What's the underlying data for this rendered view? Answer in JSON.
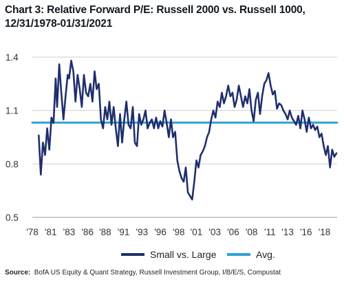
{
  "chart_data": {
    "type": "line",
    "title": "Chart 3: Relative Forward P/E: Russell 2000 vs. Russell 1000, 12/31/1978-01/31/2021",
    "xlabel": "",
    "ylabel": "",
    "xlim": [
      1978,
      2021.1
    ],
    "ylim": [
      0.5,
      1.4
    ],
    "y_ticks": [
      "0.5",
      "0.8",
      "1.1",
      "1.4"
    ],
    "y_tick_values": [
      0.5,
      0.8,
      1.1,
      1.4
    ],
    "x_ticks": [
      "'78",
      "'81",
      "'83",
      "'86",
      "'88",
      "'91",
      "'93",
      "'96",
      "'98",
      "'01",
      "'03",
      "'06",
      "'08",
      "'11",
      "'13",
      "'16",
      "'18"
    ],
    "x_tick_values": [
      1978,
      1980.6,
      1983.2,
      1985.8,
      1988.3,
      1990.9,
      1993.5,
      1996.1,
      1998.7,
      2001.2,
      2003.8,
      2006.4,
      2009,
      2011.6,
      2014.1,
      2016.7,
      2019.3
    ],
    "grid": "horizontal",
    "legend_position": "bottom",
    "series": [
      {
        "name": "Small vs. Large",
        "color": "#1f2f6e",
        "x": [
          1978.9,
          1979.2,
          1979.5,
          1979.8,
          1980.1,
          1980.4,
          1980.7,
          1981.0,
          1981.3,
          1981.5,
          1981.8,
          1982.1,
          1982.4,
          1982.7,
          1983.0,
          1983.2,
          1983.5,
          1983.8,
          1984.1,
          1984.4,
          1984.7,
          1985.0,
          1985.3,
          1985.6,
          1985.9,
          1986.2,
          1986.5,
          1986.8,
          1987.1,
          1987.4,
          1987.7,
          1988.0,
          1988.3,
          1988.6,
          1988.9,
          1989.2,
          1989.5,
          1989.8,
          1990.1,
          1990.4,
          1990.7,
          1991.0,
          1991.3,
          1991.6,
          1991.9,
          1992.2,
          1992.5,
          1992.8,
          1993.1,
          1993.4,
          1993.7,
          1994.0,
          1994.3,
          1994.6,
          1994.9,
          1995.2,
          1995.5,
          1995.8,
          1996.1,
          1996.4,
          1996.7,
          1997.0,
          1997.3,
          1997.6,
          1997.9,
          1998.2,
          1998.5,
          1998.8,
          1999.1,
          1999.4,
          1999.7,
          2000.0,
          2000.3,
          2000.6,
          2000.9,
          2001.2,
          2001.5,
          2001.8,
          2002.1,
          2002.4,
          2002.7,
          2003.0,
          2003.3,
          2003.6,
          2003.9,
          2004.2,
          2004.5,
          2004.8,
          2005.1,
          2005.4,
          2005.7,
          2006.0,
          2006.3,
          2006.6,
          2006.9,
          2007.2,
          2007.5,
          2007.8,
          2008.1,
          2008.4,
          2008.7,
          2009.0,
          2009.3,
          2009.6,
          2009.9,
          2010.2,
          2010.5,
          2010.8,
          2011.1,
          2011.4,
          2011.7,
          2012.0,
          2012.3,
          2012.6,
          2012.9,
          2013.2,
          2013.5,
          2013.8,
          2014.1,
          2014.4,
          2014.7,
          2015.0,
          2015.3,
          2015.6,
          2015.9,
          2016.2,
          2016.5,
          2016.8,
          2017.1,
          2017.4,
          2017.7,
          2018.0,
          2018.3,
          2018.6,
          2018.9,
          2019.2,
          2019.5,
          2019.8,
          2020.1,
          2020.4,
          2020.7,
          2021.0
        ],
        "y": [
          0.96,
          0.74,
          0.92,
          0.85,
          1.0,
          0.88,
          1.06,
          1.03,
          1.28,
          1.12,
          1.36,
          1.2,
          1.05,
          1.18,
          1.3,
          1.28,
          1.38,
          1.32,
          1.15,
          1.3,
          1.22,
          1.12,
          1.3,
          1.2,
          1.18,
          1.25,
          1.15,
          1.32,
          1.22,
          1.25,
          1.05,
          1.0,
          1.12,
          1.05,
          1.15,
          1.02,
          1.12,
          1.0,
          0.9,
          1.08,
          0.92,
          1.05,
          1.15,
          1.02,
          1.0,
          1.12,
          0.92,
          0.9,
          1.08,
          1.02,
          1.05,
          1.1,
          1.0,
          1.03,
          1.05,
          1.0,
          1.06,
          1.0,
          1.04,
          1.01,
          1.1,
          1.03,
          0.95,
          1.05,
          0.95,
          0.98,
          0.82,
          0.76,
          0.72,
          0.7,
          0.78,
          0.64,
          0.62,
          0.6,
          0.7,
          0.82,
          0.78,
          0.85,
          0.87,
          0.9,
          0.95,
          0.98,
          1.05,
          1.1,
          1.06,
          1.15,
          1.12,
          1.2,
          1.14,
          1.18,
          1.24,
          1.18,
          1.2,
          1.12,
          1.16,
          1.24,
          1.18,
          1.12,
          1.18,
          1.14,
          1.22,
          1.1,
          1.04,
          1.16,
          1.2,
          1.08,
          1.18,
          1.25,
          1.27,
          1.31,
          1.24,
          1.19,
          1.21,
          1.11,
          1.14,
          1.13,
          1.1,
          1.08,
          1.05,
          1.1,
          1.06,
          1.04,
          1.02,
          1.07,
          1.0,
          1.1,
          1.05,
          0.98,
          1.06,
          1.0,
          1.02,
          0.99,
          1.01,
          0.95,
          0.97,
          0.9,
          0.85,
          0.9,
          0.78,
          0.88,
          0.84,
          0.86
        ]
      },
      {
        "name": "Avg.",
        "color": "#2ba3d8",
        "x": [
          1978,
          2021.1
        ],
        "y": [
          1.032,
          1.032
        ]
      }
    ]
  },
  "source": {
    "label": "Source:",
    "text": "BofA US Equity & Quant Strategy, Russell Investment Group, I/B/E/S, Compustat"
  }
}
